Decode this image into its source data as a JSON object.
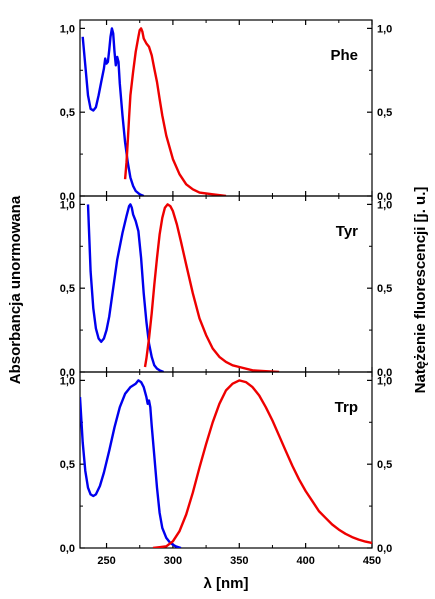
{
  "chart_data": {
    "type": "line",
    "xlabel": "λ [nm]",
    "ylabel_left": "Absorbancja unormowana",
    "ylabel_right": "Natężenie fluorescencji [j. u.]",
    "xlim": [
      230,
      450
    ],
    "x_ticks": [
      250,
      300,
      350,
      400,
      450
    ],
    "x_tick_labels": [
      "250",
      "300",
      "350",
      "400",
      "450"
    ],
    "ylim": [
      0,
      1.05
    ],
    "y_ticks": [
      0,
      0.5,
      1.0
    ],
    "y_tick_labels": [
      "0,0",
      "0,5",
      "1,0"
    ],
    "colors": {
      "absorbance": "#0000ee",
      "fluorescence": "#ee0000"
    },
    "panels": [
      {
        "label": "Phe",
        "absorbance": [
          [
            232,
            0.95
          ],
          [
            234,
            0.78
          ],
          [
            236,
            0.6
          ],
          [
            238,
            0.52
          ],
          [
            240,
            0.51
          ],
          [
            242,
            0.53
          ],
          [
            244,
            0.6
          ],
          [
            246,
            0.68
          ],
          [
            248,
            0.76
          ],
          [
            249,
            0.82
          ],
          [
            250,
            0.79
          ],
          [
            251,
            0.8
          ],
          [
            252,
            0.87
          ],
          [
            253,
            0.95
          ],
          [
            254,
            1.0
          ],
          [
            255,
            0.97
          ],
          [
            256,
            0.86
          ],
          [
            257,
            0.78
          ],
          [
            258,
            0.83
          ],
          [
            259,
            0.8
          ],
          [
            260,
            0.67
          ],
          [
            262,
            0.48
          ],
          [
            264,
            0.32
          ],
          [
            266,
            0.2
          ],
          [
            268,
            0.11
          ],
          [
            270,
            0.06
          ],
          [
            272,
            0.03
          ],
          [
            275,
            0.01
          ],
          [
            278,
            0.0
          ]
        ],
        "fluorescence": [
          [
            264,
            0.1
          ],
          [
            265,
            0.2
          ],
          [
            266,
            0.33
          ],
          [
            267,
            0.47
          ],
          [
            268,
            0.6
          ],
          [
            270,
            0.74
          ],
          [
            272,
            0.86
          ],
          [
            274,
            0.95
          ],
          [
            275,
            0.99
          ],
          [
            276,
            1.0
          ],
          [
            277,
            0.98
          ],
          [
            278,
            0.94
          ],
          [
            280,
            0.91
          ],
          [
            282,
            0.89
          ],
          [
            284,
            0.84
          ],
          [
            286,
            0.76
          ],
          [
            288,
            0.68
          ],
          [
            290,
            0.58
          ],
          [
            292,
            0.48
          ],
          [
            295,
            0.36
          ],
          [
            300,
            0.22
          ],
          [
            305,
            0.13
          ],
          [
            310,
            0.07
          ],
          [
            315,
            0.04
          ],
          [
            320,
            0.02
          ],
          [
            330,
            0.01
          ],
          [
            340,
            0.0
          ]
        ]
      },
      {
        "label": "Tyr",
        "absorbance": [
          [
            236,
            1.0
          ],
          [
            237,
            0.8
          ],
          [
            238,
            0.6
          ],
          [
            240,
            0.38
          ],
          [
            242,
            0.26
          ],
          [
            244,
            0.2
          ],
          [
            246,
            0.18
          ],
          [
            248,
            0.2
          ],
          [
            250,
            0.25
          ],
          [
            252,
            0.33
          ],
          [
            255,
            0.5
          ],
          [
            258,
            0.67
          ],
          [
            262,
            0.83
          ],
          [
            265,
            0.93
          ],
          [
            267,
            0.99
          ],
          [
            268,
            1.0
          ],
          [
            269,
            0.98
          ],
          [
            270,
            0.94
          ],
          [
            272,
            0.9
          ],
          [
            274,
            0.84
          ],
          [
            276,
            0.68
          ],
          [
            278,
            0.47
          ],
          [
            280,
            0.3
          ],
          [
            282,
            0.17
          ],
          [
            284,
            0.09
          ],
          [
            286,
            0.04
          ],
          [
            288,
            0.02
          ],
          [
            290,
            0.01
          ],
          [
            293,
            0.0
          ]
        ],
        "fluorescence": [
          [
            279,
            0.03
          ],
          [
            280,
            0.08
          ],
          [
            282,
            0.2
          ],
          [
            284,
            0.35
          ],
          [
            286,
            0.52
          ],
          [
            288,
            0.68
          ],
          [
            290,
            0.82
          ],
          [
            292,
            0.92
          ],
          [
            294,
            0.98
          ],
          [
            296,
            1.0
          ],
          [
            298,
            0.99
          ],
          [
            300,
            0.96
          ],
          [
            303,
            0.88
          ],
          [
            306,
            0.78
          ],
          [
            310,
            0.64
          ],
          [
            315,
            0.47
          ],
          [
            320,
            0.32
          ],
          [
            325,
            0.22
          ],
          [
            330,
            0.14
          ],
          [
            335,
            0.09
          ],
          [
            340,
            0.06
          ],
          [
            345,
            0.04
          ],
          [
            350,
            0.03
          ],
          [
            360,
            0.01
          ],
          [
            370,
            0.005
          ],
          [
            380,
            0.0
          ]
        ]
      },
      {
        "label": "Trp",
        "absorbance": [
          [
            230,
            0.9
          ],
          [
            232,
            0.63
          ],
          [
            234,
            0.46
          ],
          [
            236,
            0.36
          ],
          [
            238,
            0.32
          ],
          [
            240,
            0.31
          ],
          [
            242,
            0.32
          ],
          [
            245,
            0.37
          ],
          [
            248,
            0.45
          ],
          [
            252,
            0.58
          ],
          [
            256,
            0.72
          ],
          [
            260,
            0.84
          ],
          [
            264,
            0.92
          ],
          [
            268,
            0.96
          ],
          [
            272,
            0.98
          ],
          [
            274,
            1.0
          ],
          [
            276,
            0.99
          ],
          [
            278,
            0.96
          ],
          [
            280,
            0.9
          ],
          [
            281,
            0.86
          ],
          [
            282,
            0.88
          ],
          [
            283,
            0.84
          ],
          [
            284,
            0.73
          ],
          [
            286,
            0.55
          ],
          [
            288,
            0.36
          ],
          [
            290,
            0.21
          ],
          [
            292,
            0.12
          ],
          [
            295,
            0.06
          ],
          [
            298,
            0.03
          ],
          [
            302,
            0.01
          ],
          [
            306,
            0.0
          ]
        ],
        "fluorescence": [
          [
            285,
            0.0
          ],
          [
            290,
            0.005
          ],
          [
            295,
            0.01
          ],
          [
            300,
            0.04
          ],
          [
            305,
            0.1
          ],
          [
            310,
            0.2
          ],
          [
            315,
            0.33
          ],
          [
            320,
            0.48
          ],
          [
            325,
            0.62
          ],
          [
            330,
            0.75
          ],
          [
            335,
            0.86
          ],
          [
            340,
            0.94
          ],
          [
            345,
            0.98
          ],
          [
            350,
            1.0
          ],
          [
            355,
            0.99
          ],
          [
            360,
            0.96
          ],
          [
            365,
            0.91
          ],
          [
            370,
            0.84
          ],
          [
            375,
            0.76
          ],
          [
            380,
            0.67
          ],
          [
            385,
            0.58
          ],
          [
            390,
            0.49
          ],
          [
            395,
            0.41
          ],
          [
            400,
            0.34
          ],
          [
            405,
            0.28
          ],
          [
            410,
            0.22
          ],
          [
            415,
            0.18
          ],
          [
            420,
            0.14
          ],
          [
            425,
            0.11
          ],
          [
            430,
            0.085
          ],
          [
            435,
            0.065
          ],
          [
            440,
            0.05
          ],
          [
            445,
            0.038
          ],
          [
            450,
            0.03
          ]
        ]
      }
    ]
  }
}
